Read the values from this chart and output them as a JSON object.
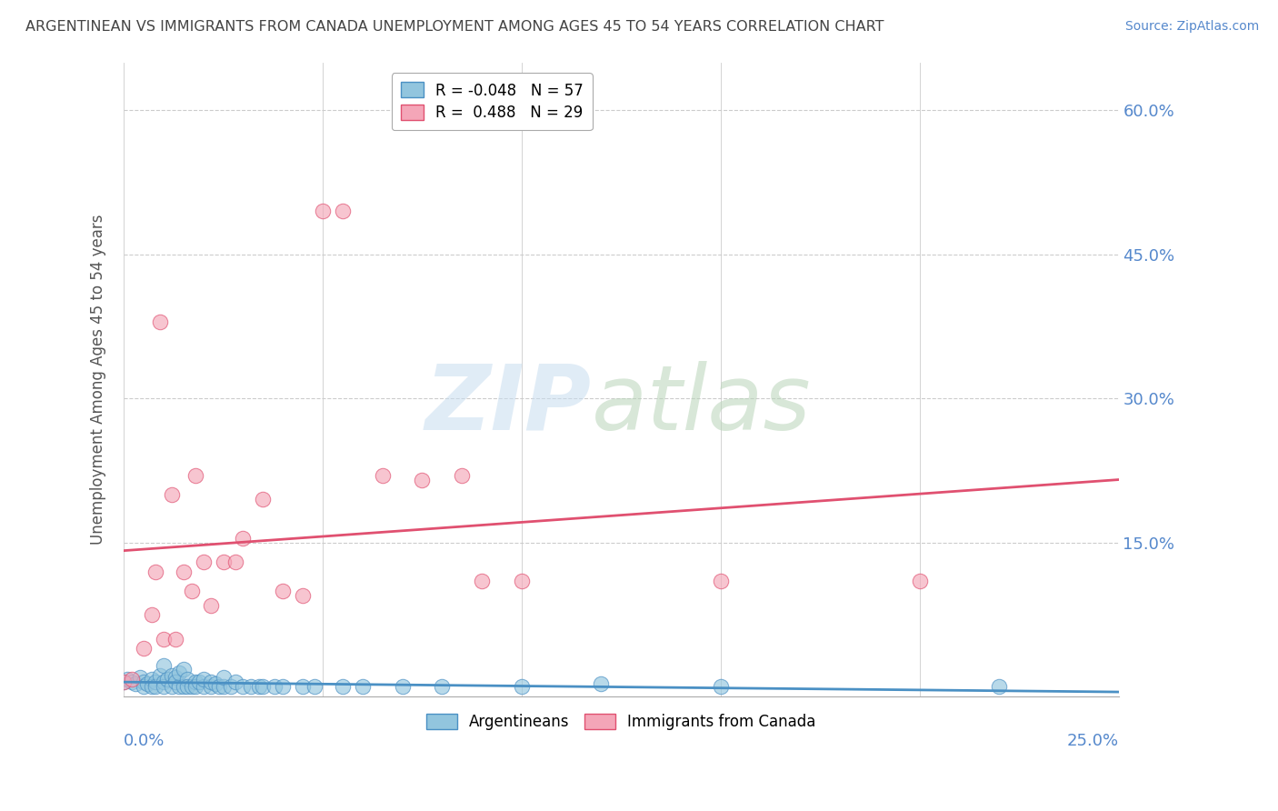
{
  "title": "ARGENTINEAN VS IMMIGRANTS FROM CANADA UNEMPLOYMENT AMONG AGES 45 TO 54 YEARS CORRELATION CHART",
  "source": "Source: ZipAtlas.com",
  "xlabel_bottom_left": "0.0%",
  "xlabel_bottom_right": "25.0%",
  "ylabel": "Unemployment Among Ages 45 to 54 years",
  "ytick_labels": [
    "15.0%",
    "30.0%",
    "45.0%",
    "60.0%"
  ],
  "ytick_values": [
    0.15,
    0.3,
    0.45,
    0.6
  ],
  "xlim": [
    0.0,
    0.25
  ],
  "ylim": [
    -0.01,
    0.65
  ],
  "blue_color": "#92c5de",
  "pink_color": "#f4a6b8",
  "blue_line_color": "#4a90c4",
  "pink_line_color": "#e05070",
  "axis_label_color": "#5588cc",
  "blue_scatter": [
    [
      0.0,
      0.005
    ],
    [
      0.001,
      0.008
    ],
    [
      0.002,
      0.005
    ],
    [
      0.003,
      0.003
    ],
    [
      0.004,
      0.01
    ],
    [
      0.005,
      0.005
    ],
    [
      0.005,
      0.0
    ],
    [
      0.006,
      0.003
    ],
    [
      0.007,
      0.008
    ],
    [
      0.007,
      0.0
    ],
    [
      0.008,
      0.005
    ],
    [
      0.008,
      0.0
    ],
    [
      0.009,
      0.012
    ],
    [
      0.01,
      0.005
    ],
    [
      0.01,
      0.0
    ],
    [
      0.01,
      0.022
    ],
    [
      0.011,
      0.008
    ],
    [
      0.012,
      0.012
    ],
    [
      0.012,
      0.0
    ],
    [
      0.013,
      0.01
    ],
    [
      0.013,
      0.005
    ],
    [
      0.014,
      0.0
    ],
    [
      0.014,
      0.015
    ],
    [
      0.015,
      0.0
    ],
    [
      0.015,
      0.018
    ],
    [
      0.016,
      0.008
    ],
    [
      0.016,
      0.0
    ],
    [
      0.017,
      0.0
    ],
    [
      0.018,
      0.005
    ],
    [
      0.018,
      0.0
    ],
    [
      0.019,
      0.005
    ],
    [
      0.02,
      0.0
    ],
    [
      0.02,
      0.008
    ],
    [
      0.022,
      0.0
    ],
    [
      0.022,
      0.005
    ],
    [
      0.023,
      0.003
    ],
    [
      0.024,
      0.0
    ],
    [
      0.025,
      0.0
    ],
    [
      0.025,
      0.01
    ],
    [
      0.027,
      0.0
    ],
    [
      0.028,
      0.005
    ],
    [
      0.03,
      0.0
    ],
    [
      0.032,
      0.0
    ],
    [
      0.034,
      0.0
    ],
    [
      0.035,
      0.0
    ],
    [
      0.038,
      0.0
    ],
    [
      0.04,
      0.0
    ],
    [
      0.045,
      0.0
    ],
    [
      0.048,
      0.0
    ],
    [
      0.055,
      0.0
    ],
    [
      0.06,
      0.0
    ],
    [
      0.07,
      0.0
    ],
    [
      0.08,
      0.0
    ],
    [
      0.1,
      0.0
    ],
    [
      0.12,
      0.003
    ],
    [
      0.15,
      0.0
    ],
    [
      0.22,
      0.0
    ]
  ],
  "pink_scatter": [
    [
      0.0,
      0.005
    ],
    [
      0.002,
      0.008
    ],
    [
      0.005,
      0.04
    ],
    [
      0.007,
      0.075
    ],
    [
      0.008,
      0.12
    ],
    [
      0.009,
      0.38
    ],
    [
      0.01,
      0.05
    ],
    [
      0.012,
      0.2
    ],
    [
      0.013,
      0.05
    ],
    [
      0.015,
      0.12
    ],
    [
      0.017,
      0.1
    ],
    [
      0.018,
      0.22
    ],
    [
      0.02,
      0.13
    ],
    [
      0.022,
      0.085
    ],
    [
      0.025,
      0.13
    ],
    [
      0.028,
      0.13
    ],
    [
      0.03,
      0.155
    ],
    [
      0.035,
      0.195
    ],
    [
      0.04,
      0.1
    ],
    [
      0.045,
      0.095
    ],
    [
      0.05,
      0.495
    ],
    [
      0.055,
      0.495
    ],
    [
      0.065,
      0.22
    ],
    [
      0.075,
      0.215
    ],
    [
      0.085,
      0.22
    ],
    [
      0.09,
      0.11
    ],
    [
      0.1,
      0.11
    ],
    [
      0.15,
      0.11
    ],
    [
      0.2,
      0.11
    ]
  ],
  "legend_blue_label": "R = -0.048   N = 57",
  "legend_pink_label": "R =  0.488   N = 29",
  "legend_group1": "Argentineans",
  "legend_group2": "Immigrants from Canada"
}
